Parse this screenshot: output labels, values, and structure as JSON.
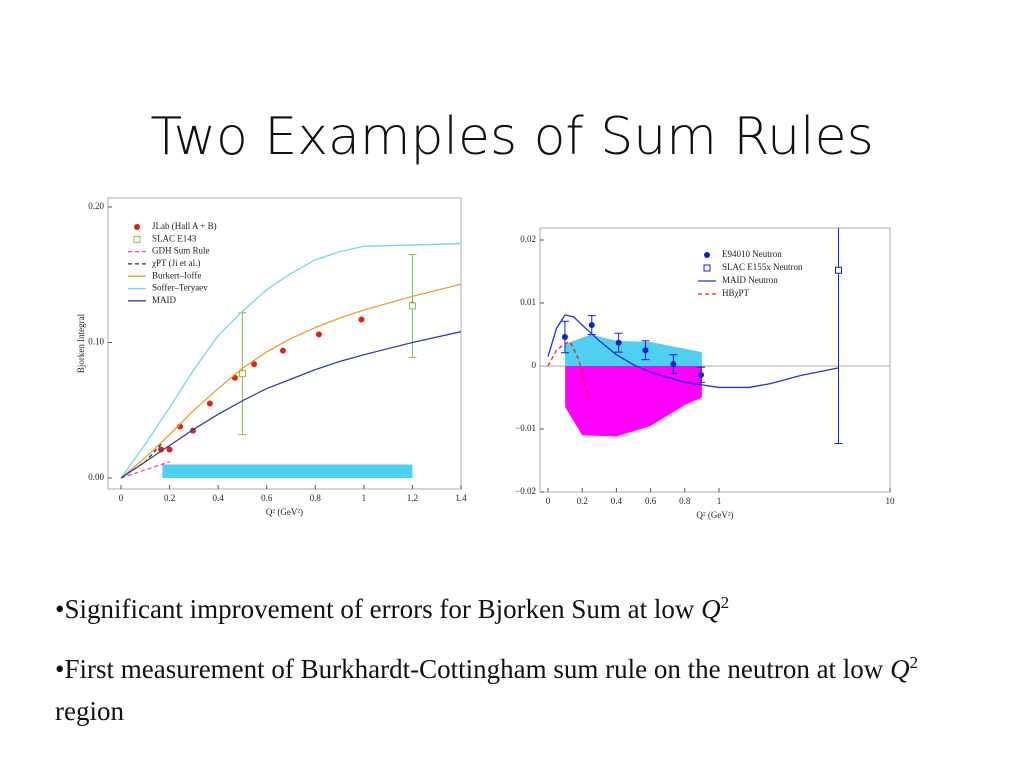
{
  "title": "Two Examples of Sum Rules",
  "chart_data": [
    {
      "type": "line",
      "x_label": "Q² (GeV²)",
      "y_label": "Bjorken Integral",
      "xlim": [
        0,
        1.4
      ],
      "xticks": [
        0,
        0.2,
        0.4,
        0.6,
        0.8,
        1,
        1.2,
        1.4
      ],
      "ylim": [
        0,
        0.2
      ],
      "yticks": [
        {
          "value": 0,
          "label": "0.00"
        },
        {
          "value": 0.1,
          "label": "0.10"
        },
        {
          "value": 0.2,
          "label": "0.20"
        }
      ],
      "xscale": "linear",
      "bands": [
        {
          "color": "#4fd0f0",
          "x": [
            0.17,
            1.2
          ],
          "values": [
            0.01,
            0.01
          ]
        }
      ],
      "series": [
        {
          "name": "JLab (Hall A + B)",
          "kind": "points",
          "marker": "circle",
          "color": "#e02020",
          "x": [
            0.165,
            0.2,
            0.243,
            0.296,
            0.366,
            0.469,
            0.548,
            0.667,
            0.815,
            0.99,
            1.2
          ],
          "values": [
            0.021,
            0.021,
            0.038,
            0.035,
            0.055,
            0.074,
            0.084,
            0.094,
            0.106,
            0.117,
            0.128
          ]
        },
        {
          "name": "SLAC E143",
          "kind": "points",
          "marker": "square",
          "color": "#80c040",
          "x": [
            0.5,
            1.2
          ],
          "values": [
            0.077,
            0.127
          ],
          "errors": [
            0.045,
            0.038
          ]
        },
        {
          "name": "GDH Sum Rule",
          "kind": "line",
          "dash": true,
          "color": "#e040e0",
          "x": [
            0,
            0.1,
            0.2
          ],
          "values": [
            0,
            0.006,
            0.012
          ]
        },
        {
          "name": "χPT (Ji et al.)",
          "kind": "line",
          "dash": true,
          "color": "#303030",
          "x": [
            0,
            0.1,
            0.17
          ],
          "values": [
            0,
            0.012,
            0.026
          ]
        },
        {
          "name": "Burkert–Ioffe",
          "kind": "line",
          "color": "#e8a030",
          "x": [
            0,
            0.1,
            0.2,
            0.3,
            0.4,
            0.5,
            0.6,
            0.7,
            0.8,
            0.9,
            1.0,
            1.2,
            1.4
          ],
          "values": [
            0,
            0.015,
            0.032,
            0.05,
            0.066,
            0.081,
            0.093,
            0.103,
            0.111,
            0.118,
            0.124,
            0.134,
            0.143
          ]
        },
        {
          "name": "Soffer–Teryaev",
          "kind": "line",
          "color": "#70d8f0",
          "x": [
            0,
            0.1,
            0.2,
            0.3,
            0.4,
            0.5,
            0.6,
            0.7,
            0.8,
            0.9,
            1.0,
            1.2,
            1.4
          ],
          "values": [
            0,
            0.025,
            0.052,
            0.08,
            0.105,
            0.123,
            0.139,
            0.151,
            0.161,
            0.167,
            0.171,
            0.172,
            0.173
          ]
        },
        {
          "name": "MAID",
          "kind": "line",
          "color": "#3040a0",
          "x": [
            0,
            0.1,
            0.2,
            0.3,
            0.4,
            0.5,
            0.6,
            0.7,
            0.8,
            0.9,
            1.0,
            1.2,
            1.4
          ],
          "values": [
            0,
            0.012,
            0.024,
            0.036,
            0.047,
            0.057,
            0.066,
            0.073,
            0.08,
            0.086,
            0.091,
            0.1,
            0.108
          ]
        }
      ]
    },
    {
      "type": "line",
      "x_label": "Q² (GeV²)",
      "xlim": [
        0,
        10
      ],
      "xticks": [
        0,
        0.2,
        0.4,
        0.6,
        0.8,
        1,
        10
      ],
      "ylim": [
        -0.02,
        0.02
      ],
      "yticks": [
        {
          "value": -0.02,
          "label": "−0.02"
        },
        {
          "value": -0.01,
          "label": "−0.01"
        },
        0,
        0.01,
        0.02
      ],
      "xscale": {
        "type": "linear-log",
        "break": 1
      },
      "zero_line": true,
      "bands": [
        {
          "color": "#4fd0f0",
          "x": [
            0.1,
            0.25,
            0.4,
            0.6,
            0.9
          ],
          "values": [
            0.0035,
            0.005,
            0.004,
            0.0038,
            0.0022
          ]
        },
        {
          "color": "#ff00ff",
          "x": [
            0.1,
            0.2,
            0.4,
            0.6,
            0.8,
            0.9
          ],
          "values": [
            -0.0065,
            -0.011,
            -0.0112,
            -0.0095,
            -0.0062,
            -0.005
          ]
        }
      ],
      "series": [
        {
          "name": "E94010 Neutron",
          "kind": "points",
          "marker": "circle",
          "color": "#1020d0",
          "x": [
            0.099,
            0.256,
            0.413,
            0.57,
            0.733,
            0.895
          ],
          "values": [
            0.0046,
            0.0065,
            0.0037,
            0.0025,
            0.0003,
            -0.0014
          ],
          "errors": [
            0.0025,
            0.0015,
            0.0015,
            0.0015,
            0.0015,
            0.0012
          ]
        },
        {
          "name": "SLAC E155x Neutron",
          "kind": "points",
          "marker": "square",
          "color": "#1020d0",
          "x": [
            5
          ],
          "values": [
            0.0152
          ],
          "errors": [
            0.0275
          ]
        },
        {
          "name": "MAID Neutron",
          "kind": "line",
          "color": "#2030e0",
          "x": [
            0,
            0.05,
            0.1,
            0.15,
            0.2,
            0.3,
            0.4,
            0.5,
            0.6,
            0.8,
            1,
            1.5,
            2,
            3,
            5
          ],
          "values": [
            0.0015,
            0.006,
            0.0081,
            0.0078,
            0.0065,
            0.004,
            0.0018,
            0.0002,
            -0.001,
            -0.0026,
            -0.0034,
            -0.0034,
            -0.0028,
            -0.0015,
            -0.0003
          ]
        },
        {
          "name": "HBχPT",
          "kind": "line",
          "dash": true,
          "color": "#e02020",
          "x": [
            0,
            0.05,
            0.1,
            0.13,
            0.18,
            0.24
          ],
          "values": [
            0,
            0.0025,
            0.0036,
            0.0038,
            0.001,
            -0.0055
          ]
        }
      ]
    }
  ],
  "bullets": [
    [
      "•Significant improvement of errors for Bjorken Sum at low ",
      "Q",
      "2"
    ],
    [
      "•First measurement of Burkhardt-Cottingham sum rule on the neutron at low ",
      "Q",
      "2",
      " region"
    ]
  ]
}
